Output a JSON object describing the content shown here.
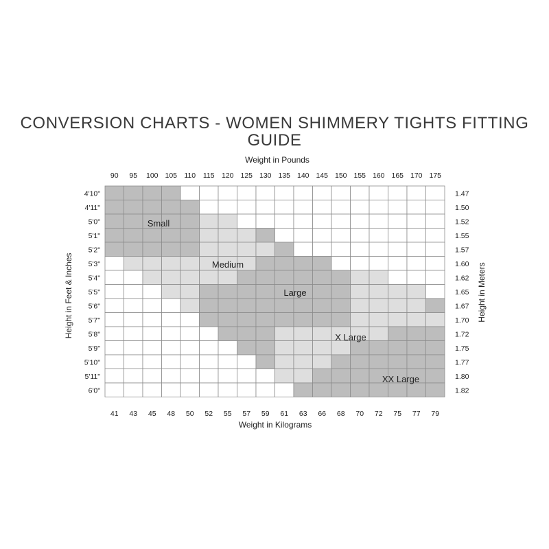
{
  "title": "CONVERSION CHARTS - WOMEN SHIMMERY TIGHTS FITTING GUIDE",
  "chart_data": {
    "type": "heatmap",
    "top_axis_label": "Weight in Pounds",
    "bottom_axis_label": "Weight in Kilograms",
    "left_axis_label": "Height in Feet & Inches",
    "right_axis_label": "Height in Meters",
    "pounds": [
      "90",
      "95",
      "100",
      "105",
      "110",
      "115",
      "120",
      "125",
      "130",
      "135",
      "140",
      "145",
      "150",
      "155",
      "160",
      "165",
      "170",
      "175"
    ],
    "kilograms": [
      "41",
      "43",
      "45",
      "48",
      "50",
      "52",
      "55",
      "57",
      "59",
      "61",
      "63",
      "66",
      "68",
      "70",
      "72",
      "75",
      "77",
      "79"
    ],
    "heights_ft_in": [
      "4'10\"",
      "4'11\"",
      "5'0\"",
      "5'1\"",
      "5'2\"",
      "5'3\"",
      "5'4\"",
      "5'5\"",
      "5'6\"",
      "5'7\"",
      "5'8\"",
      "5'9\"",
      "5'10\"",
      "5'11\"",
      "6'0\""
    ],
    "heights_m": [
      "1.47",
      "1.50",
      "1.52",
      "1.55",
      "1.57",
      "1.60",
      "1.62",
      "1.65",
      "1.67",
      "1.70",
      "1.72",
      "1.75",
      "1.77",
      "1.80",
      "1.82"
    ],
    "sizes": [
      {
        "name": "Small",
        "color": "#bdbdbd"
      },
      {
        "name": "Medium",
        "color": "#dedede"
      },
      {
        "name": "Large",
        "color": "#bdbdbd"
      },
      {
        "name": "X Large",
        "color": "#dedede"
      },
      {
        "name": "XX Large",
        "color": "#bdbdbd"
      }
    ],
    "empty_color": "#ffffff",
    "grid_color": "#8c8c8c",
    "size_ranges_by_height": [
      [
        [
          0,
          3,
          1
        ]
      ],
      [
        [
          0,
          4,
          1
        ]
      ],
      [
        [
          0,
          4,
          1
        ],
        [
          5,
          6,
          2
        ]
      ],
      [
        [
          0,
          4,
          1
        ],
        [
          5,
          7,
          2
        ],
        [
          8,
          8,
          3
        ]
      ],
      [
        [
          0,
          4,
          1
        ],
        [
          5,
          8,
          2
        ],
        [
          9,
          9,
          3
        ]
      ],
      [
        [
          1,
          7,
          2
        ],
        [
          8,
          11,
          3
        ]
      ],
      [
        [
          2,
          6,
          2
        ],
        [
          7,
          12,
          3
        ],
        [
          13,
          14,
          4
        ]
      ],
      [
        [
          3,
          4,
          2
        ],
        [
          5,
          12,
          3
        ],
        [
          13,
          16,
          4
        ]
      ],
      [
        [
          4,
          4,
          2
        ],
        [
          5,
          12,
          3
        ],
        [
          13,
          16,
          4
        ],
        [
          17,
          17,
          5
        ]
      ],
      [
        [
          5,
          12,
          3
        ],
        [
          13,
          17,
          4
        ]
      ],
      [
        [
          6,
          8,
          3
        ],
        [
          9,
          14,
          4
        ],
        [
          15,
          17,
          5
        ]
      ],
      [
        [
          7,
          8,
          3
        ],
        [
          9,
          12,
          4
        ],
        [
          13,
          17,
          5
        ]
      ],
      [
        [
          8,
          8,
          3
        ],
        [
          9,
          11,
          4
        ],
        [
          12,
          17,
          5
        ]
      ],
      [
        [
          9,
          10,
          4
        ],
        [
          11,
          17,
          5
        ]
      ],
      [
        [
          10,
          17,
          5
        ]
      ]
    ]
  }
}
